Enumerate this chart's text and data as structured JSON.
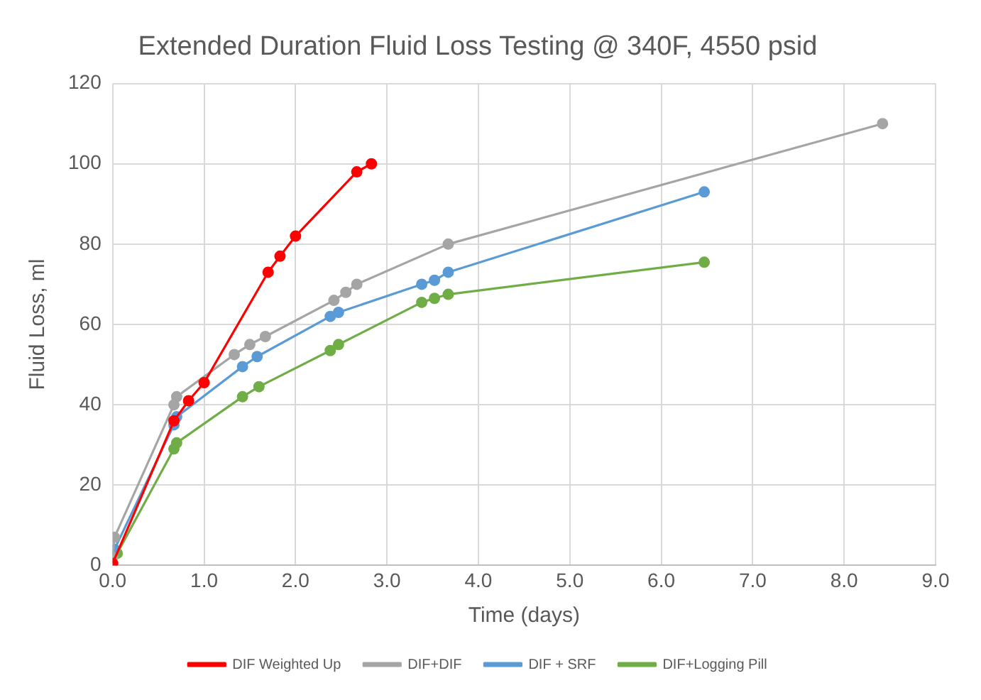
{
  "chart_data": {
    "type": "line",
    "title": "Extended Duration Fluid Loss Testing @ 340F, 4550 psid",
    "xlabel": "Time (days)",
    "ylabel": "Fluid Loss, ml",
    "xlim": [
      0,
      9
    ],
    "xticks": [
      {
        "value": 0,
        "label": "0.0"
      },
      {
        "value": 1,
        "label": "1.0"
      },
      {
        "value": 2,
        "label": "2.0"
      },
      {
        "value": 3,
        "label": "3.0"
      },
      {
        "value": 4,
        "label": "4.0"
      },
      {
        "value": 5,
        "label": "5.0"
      },
      {
        "value": 6,
        "label": "6.0"
      },
      {
        "value": 7,
        "label": "7.0"
      },
      {
        "value": 8,
        "label": "8.0"
      },
      {
        "value": 9,
        "label": "9.0"
      }
    ],
    "ylim": [
      0,
      120
    ],
    "yticks": [
      0,
      20,
      40,
      60,
      80,
      100,
      120
    ],
    "grid": true,
    "legend": "bottom",
    "marker": "circle",
    "line_style": "solid",
    "series": [
      {
        "name": "DIF Weighted Up",
        "color": "#ff0000",
        "x": [
          0.0,
          0.67,
          0.83,
          1.0,
          1.7,
          1.83,
          2.0,
          2.67,
          2.83
        ],
        "values": [
          0.5,
          36,
          41,
          45.5,
          73,
          77,
          82,
          98,
          100
        ]
      },
      {
        "name": "DIF+DIF",
        "color": "#a5a5a5",
        "x": [
          0.0,
          0.02,
          0.67,
          0.7,
          1.33,
          1.5,
          1.67,
          2.42,
          2.55,
          2.67,
          3.67,
          8.42
        ],
        "values": [
          2,
          7,
          40,
          42,
          52.5,
          55,
          57,
          66,
          68,
          70,
          80,
          110
        ]
      },
      {
        "name": "DIF + SRF",
        "color": "#5b9bd5",
        "x": [
          0.02,
          0.67,
          0.7,
          1.42,
          1.58,
          2.38,
          2.47,
          3.38,
          3.52,
          3.67,
          6.47
        ],
        "values": [
          4,
          35,
          37,
          49.5,
          52,
          62,
          63,
          70,
          71,
          73,
          93
        ]
      },
      {
        "name": "DIF+Logging Pill",
        "color": "#70ad47",
        "x": [
          0.05,
          0.67,
          0.7,
          1.42,
          1.6,
          2.38,
          2.47,
          3.38,
          3.52,
          3.67,
          6.47
        ],
        "values": [
          3,
          29,
          30.5,
          42,
          44.5,
          53.5,
          55,
          65.5,
          66.5,
          67.5,
          75.5
        ]
      }
    ]
  }
}
